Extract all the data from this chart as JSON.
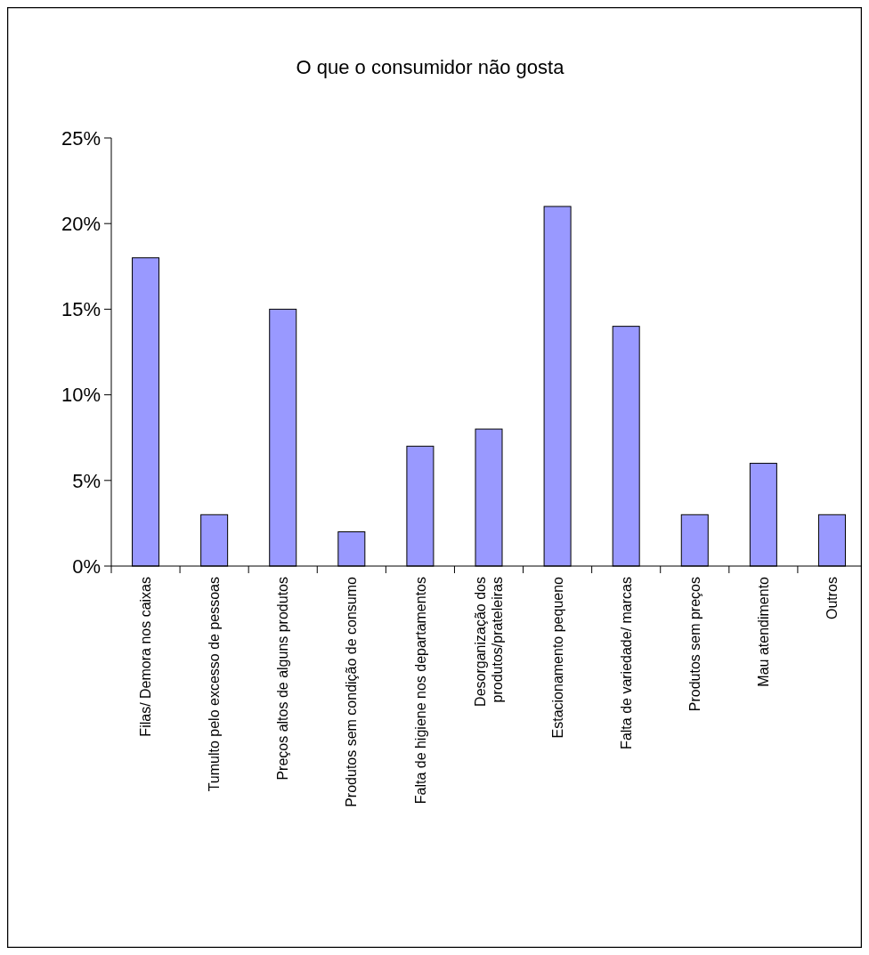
{
  "chart_data": {
    "type": "bar",
    "title": "O que o consumidor não gosta",
    "categories": [
      "Filas/ Demora nos caixas",
      "Tumulto pelo excesso de pessoas",
      "Preços altos de alguns produtos",
      "Produtos sem condição de consumo",
      "Falta de higiene nos departamentos",
      "Desorganização dos produtos/prateleiras",
      "Estacionamento pequeno",
      "Falta de variedade/ marcas",
      "Produtos sem preços",
      "Mau atendimento",
      "Outros"
    ],
    "values": [
      0.18,
      0.03,
      0.15,
      0.02,
      0.07,
      0.08,
      0.21,
      0.14,
      0.03,
      0.06,
      0.03
    ],
    "color": "#9999ff",
    "ylim": [
      0,
      0.25
    ],
    "yticks": [
      {
        "value": 0,
        "label": "0%"
      },
      {
        "value": 0.05,
        "label": "5%"
      },
      {
        "value": 0.1,
        "label": "10%"
      },
      {
        "value": 0.15,
        "label": "15%"
      },
      {
        "value": 0.2,
        "label": "20%"
      },
      {
        "value": 0.25,
        "label": "25%"
      }
    ],
    "grid": false
  }
}
